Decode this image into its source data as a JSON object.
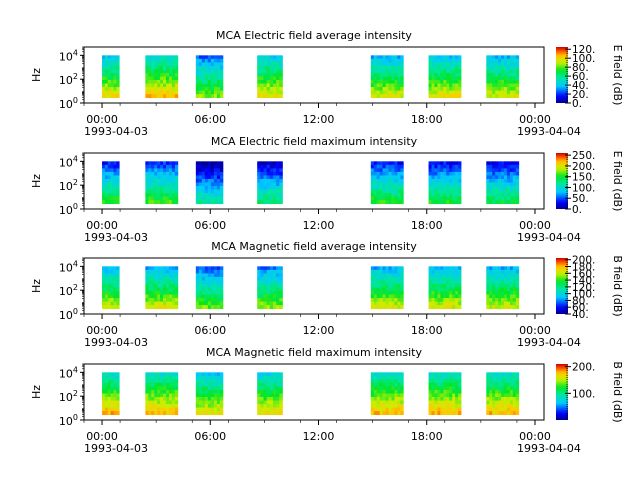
{
  "chart_data": [
    {
      "type": "heatmap",
      "title": "MCA  Electric field average intensity",
      "ylabel": "Hz",
      "yscale": "log",
      "ylim_exp": [
        0,
        4.7
      ],
      "ytick_exponents": [
        0,
        2,
        4
      ],
      "xlim_hours": [
        -1,
        24.5
      ],
      "xtick_hours": [
        0,
        6,
        12,
        18,
        24
      ],
      "xtick_labels": [
        "00:00",
        "06:00",
        "12:00",
        "18:00",
        "00:00"
      ],
      "start_date": "1993-04-03",
      "end_date": "1993-04-04",
      "colorbar_label": "E field (dB)",
      "colorbar_ticks": [
        "0.",
        "20.",
        "40.",
        "60.",
        "80.",
        "100.",
        "120."
      ],
      "cmin": 0,
      "cmax": 125,
      "segments": [
        {
          "start_h": 0.0,
          "end_h": 0.95,
          "level": 70
        },
        {
          "start_h": 2.4,
          "end_h": 4.2,
          "level": 75
        },
        {
          "start_h": 5.2,
          "end_h": 6.7,
          "level": 55
        },
        {
          "start_h": 8.6,
          "end_h": 10.0,
          "level": 70
        },
        {
          "start_h": 14.9,
          "end_h": 16.7,
          "level": 65
        },
        {
          "start_h": 18.1,
          "end_h": 19.9,
          "level": 68
        },
        {
          "start_h": 21.3,
          "end_h": 23.1,
          "level": 65
        }
      ]
    },
    {
      "type": "heatmap",
      "title": "MCA  Electric field maximum intensity",
      "ylabel": "Hz",
      "yscale": "log",
      "ylim_exp": [
        0,
        4.7
      ],
      "ytick_exponents": [
        0,
        2,
        4
      ],
      "xlim_hours": [
        -1,
        24.5
      ],
      "xtick_hours": [
        0,
        6,
        12,
        18,
        24
      ],
      "xtick_labels": [
        "00:00",
        "06:00",
        "12:00",
        "18:00",
        "00:00"
      ],
      "start_date": "1993-04-03",
      "end_date": "1993-04-04",
      "colorbar_label": "E field (dB)",
      "colorbar_ticks": [
        "0.",
        "50.",
        "100.",
        "150.",
        "200.",
        "250."
      ],
      "cmin": 0,
      "cmax": 260,
      "segments": [
        {
          "start_h": 0.0,
          "end_h": 0.95,
          "level": 95
        },
        {
          "start_h": 2.4,
          "end_h": 4.2,
          "level": 100
        },
        {
          "start_h": 5.2,
          "end_h": 6.7,
          "level": 60
        },
        {
          "start_h": 8.6,
          "end_h": 10.0,
          "level": 75
        },
        {
          "start_h": 14.9,
          "end_h": 16.7,
          "level": 95
        },
        {
          "start_h": 18.1,
          "end_h": 19.9,
          "level": 90
        },
        {
          "start_h": 21.3,
          "end_h": 23.1,
          "level": 85
        }
      ]
    },
    {
      "type": "heatmap",
      "title": "MCA  Magnetic field average intensity",
      "ylabel": "Hz",
      "yscale": "log",
      "ylim_exp": [
        0,
        4.7
      ],
      "ytick_exponents": [
        0,
        2,
        4
      ],
      "xlim_hours": [
        -1,
        24.5
      ],
      "xtick_hours": [
        0,
        6,
        12,
        18,
        24
      ],
      "xtick_labels": [
        "00:00",
        "06:00",
        "12:00",
        "18:00",
        "00:00"
      ],
      "start_date": "1993-04-03",
      "end_date": "1993-04-04",
      "colorbar_label": "B field (dB)",
      "colorbar_ticks": [
        "40.",
        "60.",
        "80.",
        "100.",
        "120.",
        "140.",
        "160.",
        "180.",
        "200."
      ],
      "cmin": 40,
      "cmax": 205,
      "segments": [
        {
          "start_h": 0.0,
          "end_h": 0.95,
          "level": 125
        },
        {
          "start_h": 2.4,
          "end_h": 4.2,
          "level": 125
        },
        {
          "start_h": 5.2,
          "end_h": 6.7,
          "level": 110
        },
        {
          "start_h": 8.6,
          "end_h": 10.0,
          "level": 115
        },
        {
          "start_h": 14.9,
          "end_h": 16.7,
          "level": 125
        },
        {
          "start_h": 18.1,
          "end_h": 19.9,
          "level": 125
        },
        {
          "start_h": 21.3,
          "end_h": 23.1,
          "level": 125
        }
      ]
    },
    {
      "type": "heatmap",
      "title": "MCA  Magnetic field maximum intensity",
      "ylabel": "Hz",
      "yscale": "log",
      "ylim_exp": [
        0,
        4.7
      ],
      "ytick_exponents": [
        0,
        2,
        4
      ],
      "xlim_hours": [
        -1,
        24.5
      ],
      "xtick_hours": [
        0,
        6,
        12,
        18,
        24
      ],
      "xtick_labels": [
        "00:00",
        "06:00",
        "12:00",
        "18:00",
        "00:00"
      ],
      "start_date": "1993-04-03",
      "end_date": "1993-04-04",
      "colorbar_label": "B field (dB)",
      "colorbar_ticks": [
        "100.",
        "200."
      ],
      "cmin": 0,
      "cmax": 210,
      "segments": [
        {
          "start_h": 0.0,
          "end_h": 0.95,
          "level": 130
        },
        {
          "start_h": 2.4,
          "end_h": 4.2,
          "level": 130
        },
        {
          "start_h": 5.2,
          "end_h": 6.7,
          "level": 115
        },
        {
          "start_h": 8.6,
          "end_h": 10.0,
          "level": 120
        },
        {
          "start_h": 14.9,
          "end_h": 16.7,
          "level": 130
        },
        {
          "start_h": 18.1,
          "end_h": 19.9,
          "level": 130
        },
        {
          "start_h": 21.3,
          "end_h": 23.1,
          "level": 130
        }
      ]
    }
  ]
}
